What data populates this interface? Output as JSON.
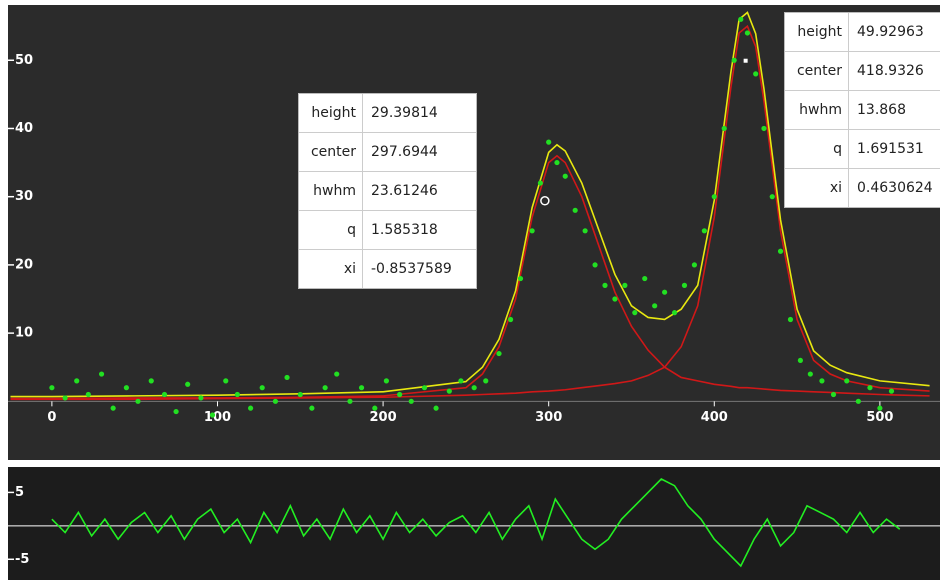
{
  "chart_data": [
    {
      "type": "scatter",
      "xlim": [
        -26.5,
        536.3
      ],
      "ylim": [
        -8.6,
        58.1
      ],
      "xticks": [
        0,
        100,
        200,
        300,
        400,
        500
      ],
      "yticks": [
        10,
        20,
        30,
        40,
        50
      ],
      "series": [
        {
          "type": "line",
          "color": "#d01818",
          "x": [
            -25,
            0,
            50,
            100,
            150,
            200,
            250,
            260,
            270,
            280,
            290,
            300,
            305,
            310,
            320,
            330,
            340,
            350,
            360,
            370,
            380,
            390,
            400,
            410,
            415,
            420,
            425,
            430,
            440,
            450,
            460,
            470,
            480,
            500,
            530
          ],
          "values": [
            0.4,
            0.4,
            0.5,
            0.5,
            0.6,
            0.8,
            2,
            4,
            8,
            15,
            27,
            35,
            36,
            35,
            30,
            23,
            16,
            11,
            7.5,
            5,
            3.5,
            3,
            2.5,
            2.2,
            2,
            2,
            1.9,
            1.8,
            1.6,
            1.5,
            1.4,
            1.3,
            1.2,
            1,
            0.8
          ]
        },
        {
          "type": "line",
          "color": "#d01818",
          "x": [
            -25,
            0,
            50,
            100,
            150,
            200,
            250,
            260,
            270,
            280,
            290,
            300,
            305,
            310,
            320,
            330,
            340,
            350,
            360,
            370,
            380,
            390,
            400,
            410,
            415,
            420,
            425,
            430,
            440,
            450,
            460,
            470,
            480,
            500,
            530
          ],
          "values": [
            0.3,
            0.3,
            0.3,
            0.4,
            0.5,
            0.6,
            0.9,
            1,
            1.1,
            1.2,
            1.4,
            1.5,
            1.6,
            1.7,
            2,
            2.3,
            2.6,
            3,
            3.8,
            5,
            8,
            14,
            27,
            46,
            54,
            55,
            52,
            44,
            25,
            12,
            6,
            4,
            3,
            2,
            1.5
          ]
        },
        {
          "type": "line",
          "color": "#e8e810",
          "x": [
            -25,
            0,
            50,
            100,
            150,
            200,
            250,
            260,
            270,
            280,
            290,
            300,
            305,
            310,
            320,
            330,
            340,
            350,
            360,
            370,
            380,
            390,
            400,
            410,
            415,
            420,
            425,
            430,
            440,
            450,
            460,
            470,
            480,
            500,
            530
          ],
          "values": [
            0.7,
            0.7,
            0.8,
            0.9,
            1.1,
            1.4,
            2.9,
            5,
            9.1,
            16.2,
            28.4,
            36.5,
            37.6,
            36.7,
            32,
            25.3,
            18.6,
            14,
            12.3,
            12,
            13.5,
            17,
            29.5,
            48.2,
            56,
            57,
            53.9,
            45.8,
            26.6,
            13.5,
            7.4,
            5.3,
            4.2,
            3,
            2.3
          ]
        },
        {
          "type": "scatter",
          "color": "#22e022",
          "x": [
            0,
            8,
            15,
            22,
            30,
            37,
            45,
            52,
            60,
            68,
            75,
            82,
            90,
            97,
            105,
            112,
            120,
            127,
            135,
            142,
            150,
            157,
            165,
            172,
            180,
            187,
            195,
            202,
            210,
            217,
            225,
            232,
            240,
            247,
            255,
            262,
            270,
            277,
            283,
            290,
            295,
            300,
            305,
            310,
            316,
            322,
            328,
            334,
            340,
            346,
            352,
            358,
            364,
            370,
            376,
            382,
            388,
            394,
            400,
            406,
            412,
            416,
            420,
            425,
            430,
            435,
            440,
            446,
            452,
            458,
            465,
            472,
            480,
            487,
            494,
            500,
            507
          ],
          "values": [
            2,
            0.5,
            3,
            1,
            4,
            -1,
            2,
            0,
            3,
            1,
            -1.5,
            2.5,
            0.5,
            -2,
            3,
            1,
            -1,
            2,
            0,
            3.5,
            1,
            -1,
            2,
            4,
            0,
            2,
            -1,
            3,
            1,
            0,
            2,
            -1,
            1.5,
            3,
            2,
            3,
            7,
            12,
            18,
            25,
            32,
            38,
            35,
            33,
            28,
            25,
            20,
            17,
            15,
            17,
            13,
            18,
            14,
            16,
            13,
            17,
            20,
            25,
            30,
            40,
            50,
            56,
            54,
            48,
            40,
            30,
            22,
            12,
            6,
            4,
            3,
            1,
            3,
            0,
            2,
            -1,
            1.5
          ]
        }
      ]
    },
    {
      "type": "line",
      "xlim": [
        -26.5,
        536.3
      ],
      "ylim": [
        -8.1,
        8.8
      ],
      "yticks": [
        5,
        -5
      ],
      "series": [
        {
          "type": "line",
          "color": "#22ee22",
          "x": [
            0,
            8,
            16,
            24,
            32,
            40,
            48,
            56,
            64,
            72,
            80,
            88,
            96,
            104,
            112,
            120,
            128,
            136,
            144,
            152,
            160,
            168,
            176,
            184,
            192,
            200,
            208,
            216,
            224,
            232,
            240,
            248,
            256,
            264,
            272,
            280,
            288,
            296,
            304,
            312,
            320,
            328,
            336,
            344,
            352,
            360,
            368,
            376,
            384,
            392,
            400,
            408,
            416,
            424,
            432,
            440,
            448,
            456,
            464,
            472,
            480,
            488,
            496,
            504,
            512
          ],
          "values": [
            1,
            -1,
            2,
            -1.5,
            1,
            -2,
            0.5,
            2,
            -1,
            1.5,
            -2,
            1,
            2.5,
            -1,
            1,
            -2.5,
            2,
            -1,
            3,
            -1.5,
            1,
            -2,
            2.5,
            -1,
            1.5,
            -2,
            2,
            -1,
            1,
            -1.5,
            0.5,
            1.5,
            -1,
            2,
            -2,
            1,
            3,
            -2,
            4,
            1,
            -2,
            -3.5,
            -2,
            1,
            3,
            5,
            7,
            6,
            3,
            1,
            -2,
            -4,
            -6,
            -2,
            1,
            -3,
            -1,
            3,
            2,
            1,
            -1,
            2,
            -1,
            1,
            -0.5
          ]
        }
      ]
    }
  ],
  "panels": [
    {
      "rows": [
        {
          "label": "height",
          "value": 29.39814
        },
        {
          "label": "center",
          "value": 297.6944
        },
        {
          "label": "hwhm",
          "value": 23.61246
        },
        {
          "label": "q",
          "value": 1.585318
        },
        {
          "label": "xi",
          "value": -0.8537589
        }
      ]
    },
    {
      "rows": [
        {
          "label": "height",
          "value": 49.92963
        },
        {
          "label": "center",
          "value": 418.9326
        },
        {
          "label": "hwhm",
          "value": 13.868
        },
        {
          "label": "q",
          "value": 1.691531
        },
        {
          "label": "xi",
          "value": 0.4630624
        }
      ]
    }
  ]
}
